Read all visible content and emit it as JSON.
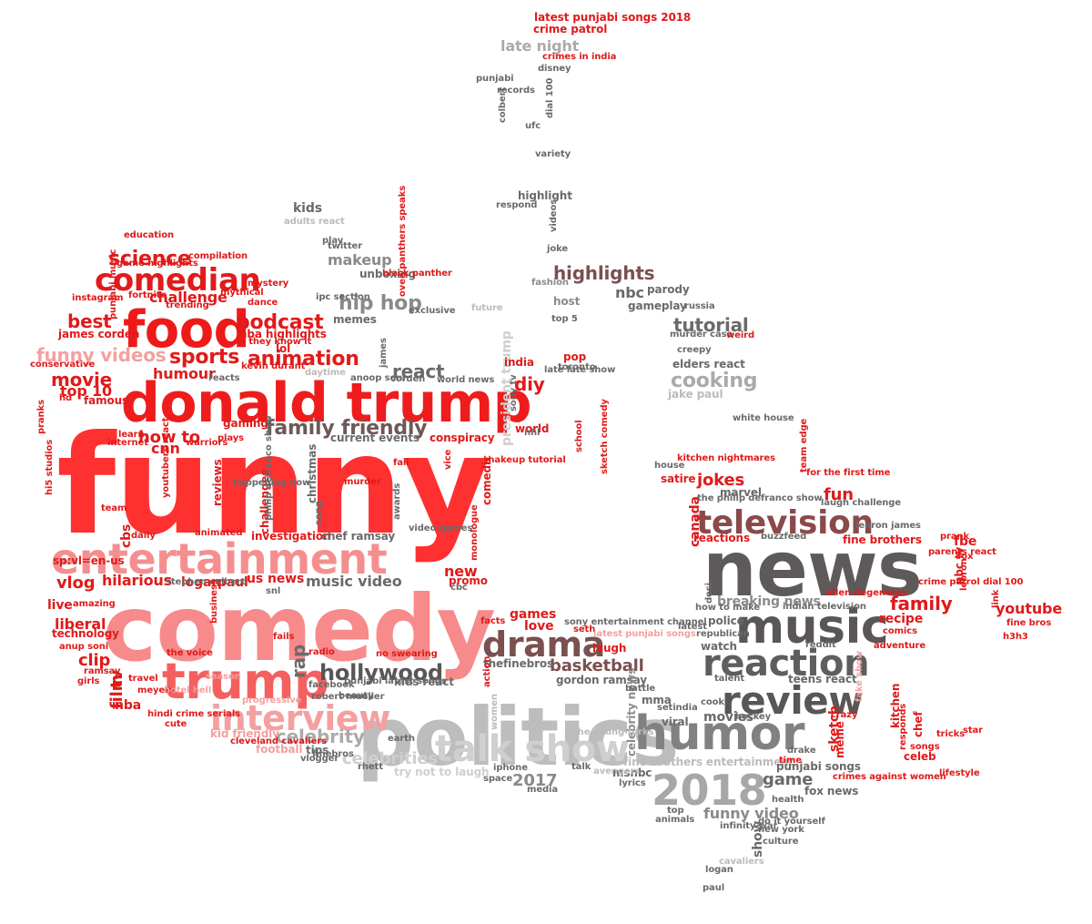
{
  "palette": {
    "red": "#e11a1a",
    "red_bright": "#ff3030",
    "pink": "#f79090",
    "pink_light": "#f4a8a8",
    "salmon": "#f06a6a",
    "dark_gray": "#555555",
    "mid_gray": "#888888",
    "light_gray": "#bbbbbb",
    "brown": "#7a4b4b",
    "mauve": "#8a5a5a"
  },
  "words": [
    {
      "text": "funny",
      "c": "#ff3030"
    },
    {
      "text": "comedy",
      "c": "#f78a8a"
    },
    {
      "text": "politics",
      "c": "#bdbdbd"
    },
    {
      "text": "news",
      "c": "#5e5a5a"
    },
    {
      "text": "donald trump",
      "c": "#ee1c1c"
    },
    {
      "text": "entertainment",
      "c": "#f58f8f"
    },
    {
      "text": "music",
      "c": "#5a5656"
    },
    {
      "text": "humor",
      "c": "#828080"
    },
    {
      "text": "food",
      "c": "#ee1a1a"
    },
    {
      "text": "trump",
      "c": "#f46060"
    },
    {
      "text": "2018",
      "c": "#a7a7a7"
    },
    {
      "text": "reaction",
      "c": "#5e5e5e"
    },
    {
      "text": "review",
      "c": "#5a5656"
    },
    {
      "text": "talk show",
      "c": "#cfcfcf"
    },
    {
      "text": "comedian",
      "c": "#e11a1a"
    },
    {
      "text": "television",
      "c": "#8a4a4a"
    },
    {
      "text": "interview",
      "c": "#f4a0a0"
    },
    {
      "text": "drama",
      "c": "#7a5050"
    },
    {
      "text": "highlights",
      "c": "#7a5050"
    },
    {
      "text": "family friendly",
      "c": "#6e5858"
    },
    {
      "text": "funny videos",
      "c": "#f4a0a0"
    },
    {
      "text": "hollywood",
      "c": "#5a5656"
    },
    {
      "text": "sports",
      "c": "#e11a1a"
    },
    {
      "text": "science",
      "c": "#e11a1a"
    },
    {
      "text": "podcast",
      "c": "#e11a1a"
    },
    {
      "text": "animation",
      "c": "#e11a1a"
    },
    {
      "text": "best",
      "c": "#e11a1a"
    },
    {
      "text": "movie",
      "c": "#e11a1a"
    },
    {
      "text": "hip hop",
      "c": "#8a8a8a"
    },
    {
      "text": "makeup",
      "c": "#8a8a8a"
    },
    {
      "text": "cooking",
      "c": "#aaaaaa"
    },
    {
      "text": "tutorial",
      "c": "#6a6a6a"
    },
    {
      "text": "react",
      "c": "#6a6a6a"
    },
    {
      "text": "celebrity",
      "c": "#aaaaaa"
    },
    {
      "text": "celebrities",
      "c": "#cfcfcf"
    },
    {
      "text": "music video",
      "c": "#6a6a6a"
    },
    {
      "text": "family",
      "c": "#e11a1a"
    },
    {
      "text": "youtube",
      "c": "#e11a1a"
    },
    {
      "text": "fun",
      "c": "#e11a1a"
    },
    {
      "text": "jokes",
      "c": "#e11a1a"
    },
    {
      "text": "game",
      "c": "#6a6a6a"
    },
    {
      "text": "basketball",
      "c": "#7a5050"
    },
    {
      "text": "funny video",
      "c": "#8a8a8a"
    },
    {
      "text": "movies",
      "c": "#6a6a6a"
    },
    {
      "text": "2017",
      "c": "#8a8a8a"
    },
    {
      "text": "breaking news",
      "c": "#8a8a8a"
    },
    {
      "text": "late night",
      "c": "#aaaaaa"
    },
    {
      "text": "diy",
      "c": "#e11a1a"
    },
    {
      "text": "rap",
      "c": "#6a6a6a"
    },
    {
      "text": "vlog",
      "c": "#e11a1a"
    },
    {
      "text": "clip",
      "c": "#e11a1a"
    },
    {
      "text": "live",
      "c": "#e11a1a"
    },
    {
      "text": "liberal",
      "c": "#e11a1a"
    },
    {
      "text": "film",
      "c": "#e11a1a"
    },
    {
      "text": "tv",
      "c": "#e11a1a"
    },
    {
      "text": "nba",
      "c": "#e11a1a"
    },
    {
      "text": "top 10",
      "c": "#e11a1a"
    },
    {
      "text": "how to",
      "c": "#e11a1a"
    },
    {
      "text": "cnn",
      "c": "#e11a1a"
    },
    {
      "text": "humour",
      "c": "#e11a1a"
    },
    {
      "text": "challenge",
      "c": "#e11a1a"
    },
    {
      "text": "hilarious",
      "c": "#e11a1a"
    },
    {
      "text": "logan",
      "c": "#e11a1a"
    },
    {
      "text": "paul",
      "c": "#e11a1a"
    },
    {
      "text": "us",
      "c": "#e11a1a"
    },
    {
      "text": "news",
      "c": "#e11a1a"
    },
    {
      "text": "games",
      "c": "#e11a1a"
    },
    {
      "text": "love",
      "c": "#e11a1a"
    },
    {
      "text": "laugh",
      "c": "#e11a1a"
    },
    {
      "text": "new",
      "c": "#e11a1a"
    },
    {
      "text": "recipe",
      "c": "#e11a1a"
    },
    {
      "text": "fbe",
      "c": "#e11a1a"
    },
    {
      "text": "kids",
      "c": "#6a6a6a"
    },
    {
      "text": "nbc",
      "c": "#6a6a6a"
    },
    {
      "text": "host",
      "c": "#8a8a8a"
    },
    {
      "text": "investigation",
      "c": "#e11a1a"
    },
    {
      "text": "chef ramsay",
      "c": "#6a6a6a"
    },
    {
      "text": "gordon ramsay",
      "c": "#6a6a6a"
    },
    {
      "text": "kids react",
      "c": "#6a6a6a"
    },
    {
      "text": "thefinebros",
      "c": "#6a6a6a"
    },
    {
      "text": "kid friendly",
      "c": "#f4a0a0"
    },
    {
      "text": "football",
      "c": "#f4a0a0"
    },
    {
      "text": "christmas",
      "c": "#6a6a6a"
    },
    {
      "text": "president trump",
      "c": "#cfcfcf"
    },
    {
      "text": "celebrity news",
      "c": "#8a8a8a"
    },
    {
      "text": "fine brothers",
      "c": "#e11a1a"
    },
    {
      "text": "fine brothers entertainment",
      "c": "#bbbbbb"
    },
    {
      "text": "try not to laugh",
      "c": "#cfcfcf"
    },
    {
      "text": "show",
      "c": "#6a6a6a"
    },
    {
      "text": "sketch",
      "c": "#e11a1a"
    },
    {
      "text": "canada",
      "c": "#e11a1a"
    },
    {
      "text": "unboxing",
      "c": "#6a6a6a"
    },
    {
      "text": "gameplay",
      "c": "#6a6a6a"
    },
    {
      "text": "parody",
      "c": "#6a6a6a"
    },
    {
      "text": "conspiracy",
      "c": "#e11a1a"
    },
    {
      "text": "current events",
      "c": "#6a6a6a"
    },
    {
      "text": "gaming",
      "c": "#e11a1a"
    },
    {
      "text": "reactions",
      "c": "#e11a1a"
    },
    {
      "text": "punjabi songs",
      "c": "#6a6a6a"
    },
    {
      "text": "fox news",
      "c": "#6a6a6a"
    },
    {
      "text": "msnbc",
      "c": "#6a6a6a"
    },
    {
      "text": "viral",
      "c": "#6a6a6a"
    },
    {
      "text": "watch",
      "c": "#6a6a6a"
    },
    {
      "text": "police",
      "c": "#6a6a6a"
    },
    {
      "text": "teens react",
      "c": "#6a6a6a"
    },
    {
      "text": "mma",
      "c": "#6a6a6a"
    },
    {
      "text": "elders react",
      "c": "#6a6a6a"
    },
    {
      "text": "jake paul",
      "c": "#bbbbbb"
    },
    {
      "text": "marvel",
      "c": "#6a6a6a"
    },
    {
      "text": "satire",
      "c": "#e11a1a"
    },
    {
      "text": "chef",
      "c": "#e11a1a"
    },
    {
      "text": "celeb",
      "c": "#e11a1a"
    },
    {
      "text": "kitchen",
      "c": "#e11a1a"
    },
    {
      "text": "tricks",
      "c": "#e11a1a"
    },
    {
      "text": "meme",
      "c": "#e11a1a"
    },
    {
      "text": "crazy",
      "c": "#e11a1a"
    },
    {
      "text": "nbc tv",
      "c": "#e11a1a"
    },
    {
      "text": "fine bros",
      "c": "#e11a1a"
    },
    {
      "text": "h3h3",
      "c": "#e11a1a"
    },
    {
      "text": "james corden",
      "c": "#e11a1a"
    },
    {
      "text": "famous",
      "c": "#e11a1a"
    },
    {
      "text": "travel",
      "c": "#e11a1a"
    },
    {
      "text": "cbs",
      "c": "#e11a1a"
    },
    {
      "text": "daily",
      "c": "#e11a1a"
    },
    {
      "text": "reviews",
      "c": "#e11a1a"
    },
    {
      "text": "challenges",
      "c": "#e11a1a"
    },
    {
      "text": "comedic",
      "c": "#e11a1a"
    },
    {
      "text": "promo",
      "c": "#e11a1a"
    },
    {
      "text": "pop",
      "c": "#e11a1a"
    },
    {
      "text": "india",
      "c": "#e11a1a"
    },
    {
      "text": "world",
      "c": "#e11a1a"
    },
    {
      "text": "school",
      "c": "#e11a1a"
    },
    {
      "text": "internet",
      "c": "#e11a1a"
    },
    {
      "text": "learn",
      "c": "#e11a1a"
    },
    {
      "text": "technology",
      "c": "#e11a1a"
    },
    {
      "text": "amazing",
      "c": "#e11a1a"
    },
    {
      "text": "sp:vl=en-us",
      "c": "#e11a1a"
    },
    {
      "text": "compilation",
      "c": "#e11a1a"
    },
    {
      "text": "education",
      "c": "#e11a1a"
    },
    {
      "text": "game highlights",
      "c": "#e11a1a"
    },
    {
      "text": "nba highlights",
      "c": "#e11a1a"
    },
    {
      "text": "lol",
      "c": "#e11a1a"
    },
    {
      "text": "instagram",
      "c": "#e11a1a"
    },
    {
      "text": "punjabi music",
      "c": "#e11a1a"
    },
    {
      "text": "dance",
      "c": "#e11a1a"
    },
    {
      "text": "mystery",
      "c": "#e11a1a"
    },
    {
      "text": "mythical",
      "c": "#e11a1a"
    },
    {
      "text": "trending",
      "c": "#e11a1a"
    },
    {
      "text": "fortnite",
      "c": "#e11a1a"
    },
    {
      "text": "conservative",
      "c": "#e11a1a"
    },
    {
      "text": "ramsay",
      "c": "#e11a1a"
    },
    {
      "text": "girls",
      "c": "#e11a1a"
    },
    {
      "text": "anup soni",
      "c": "#e11a1a"
    },
    {
      "text": "meyers",
      "c": "#e11a1a"
    },
    {
      "text": "hotel hell",
      "c": "#f4a0a0"
    },
    {
      "text": "hindi crime serials",
      "c": "#e11a1a"
    },
    {
      "text": "cute",
      "c": "#e11a1a"
    },
    {
      "text": "cleveland cavaliers",
      "c": "#e11a1a"
    },
    {
      "text": "progressive",
      "c": "#f4a0a0"
    },
    {
      "text": "season",
      "c": "#f4a0a0"
    },
    {
      "text": "fails",
      "c": "#e11a1a"
    },
    {
      "text": "the voice",
      "c": "#e11a1a"
    },
    {
      "text": "stephen colbert",
      "c": "#6a6a6a"
    },
    {
      "text": "snl",
      "c": "#6a6a6a"
    },
    {
      "text": "cbc",
      "c": "#6a6a6a"
    },
    {
      "text": "team",
      "c": "#e11a1a"
    },
    {
      "text": "animated",
      "c": "#e11a1a"
    },
    {
      "text": "warriors",
      "c": "#e11a1a"
    },
    {
      "text": "plays",
      "c": "#e11a1a"
    },
    {
      "text": "hi5 studios",
      "c": "#e11a1a"
    },
    {
      "text": "youtubers react",
      "c": "#e11a1a"
    },
    {
      "text": "latest punjabi songs 2018",
      "c": "#e11a1a"
    },
    {
      "text": "crime patrol",
      "c": "#e11a1a"
    },
    {
      "text": "crimes in india",
      "c": "#e11a1a"
    },
    {
      "text": "disney",
      "c": "#6a6a6a"
    },
    {
      "text": "punjabi",
      "c": "#6a6a6a"
    },
    {
      "text": "records",
      "c": "#6a6a6a"
    },
    {
      "text": "colbert",
      "c": "#6a6a6a"
    },
    {
      "text": "dial 100",
      "c": "#6a6a6a"
    },
    {
      "text": "ufc",
      "c": "#6a6a6a"
    },
    {
      "text": "variety",
      "c": "#6a6a6a"
    },
    {
      "text": "highlight",
      "c": "#6a6a6a"
    },
    {
      "text": "respond",
      "c": "#6a6a6a"
    },
    {
      "text": "videos",
      "c": "#6a6a6a"
    },
    {
      "text": "joke",
      "c": "#6a6a6a"
    },
    {
      "text": "adults react",
      "c": "#bbbbbb"
    },
    {
      "text": "play",
      "c": "#6a6a6a"
    },
    {
      "text": "twitter",
      "c": "#6a6a6a"
    },
    {
      "text": "ipc section",
      "c": "#6a6a6a"
    },
    {
      "text": "memes",
      "c": "#6a6a6a"
    },
    {
      "text": "exclusive",
      "c": "#6a6a6a"
    },
    {
      "text": "future",
      "c": "#bbbbbb"
    },
    {
      "text": "fashion",
      "c": "#8a8a8a"
    },
    {
      "text": "top 5",
      "c": "#6a6a6a"
    },
    {
      "text": "russia",
      "c": "#6a6a6a"
    },
    {
      "text": "murder case",
      "c": "#6a6a6a"
    },
    {
      "text": "weird",
      "c": "#e11a1a"
    },
    {
      "text": "creepy",
      "c": "#6a6a6a"
    },
    {
      "text": "white house",
      "c": "#6a6a6a"
    },
    {
      "text": "daytime",
      "c": "#bbbbbb"
    },
    {
      "text": "anoop soni",
      "c": "#6a6a6a"
    },
    {
      "text": "corden",
      "c": "#6a6a6a"
    },
    {
      "text": "world news",
      "c": "#6a6a6a"
    },
    {
      "text": "james",
      "c": "#6a6a6a"
    },
    {
      "text": "toronto",
      "c": "#6a6a6a"
    },
    {
      "text": "late late show",
      "c": "#6a6a6a"
    },
    {
      "text": "sony tv",
      "c": "#6a6a6a"
    },
    {
      "text": "nhl",
      "c": "#6a6a6a"
    },
    {
      "text": "sketch comedy",
      "c": "#e11a1a"
    },
    {
      "text": "makeup tutorial",
      "c": "#e11a1a"
    },
    {
      "text": "vice",
      "c": "#e11a1a"
    },
    {
      "text": "fail",
      "c": "#e11a1a"
    },
    {
      "text": "murder",
      "c": "#e11a1a"
    },
    {
      "text": "awards",
      "c": "#6a6a6a"
    },
    {
      "text": "video games",
      "c": "#6a6a6a"
    },
    {
      "text": "song",
      "c": "#6a6a6a"
    },
    {
      "text": "philip defranco show",
      "c": "#6a6a6a"
    },
    {
      "text": "monologue",
      "c": "#e11a1a"
    },
    {
      "text": "sony entertainment channel",
      "c": "#6a6a6a"
    },
    {
      "text": "seth",
      "c": "#e11a1a"
    },
    {
      "text": "latest punjabi songs",
      "c": "#f4a0a0"
    },
    {
      "text": "facts",
      "c": "#e11a1a"
    },
    {
      "text": "no swearing",
      "c": "#e11a1a"
    },
    {
      "text": "radio",
      "c": "#e11a1a"
    },
    {
      "text": "action",
      "c": "#e11a1a"
    },
    {
      "text": "facebook",
      "c": "#6a6a6a"
    },
    {
      "text": "punjabi latest songs",
      "c": "#6a6a6a"
    },
    {
      "text": "robert mueller",
      "c": "#6a6a6a"
    },
    {
      "text": "beauty",
      "c": "#6a6a6a"
    },
    {
      "text": "women",
      "c": "#bbbbbb"
    },
    {
      "text": "iphone",
      "c": "#6a6a6a"
    },
    {
      "text": "space",
      "c": "#6a6a6a"
    },
    {
      "text": "media",
      "c": "#6a6a6a"
    },
    {
      "text": "earth",
      "c": "#6a6a6a"
    },
    {
      "text": "tips",
      "c": "#6a6a6a"
    },
    {
      "text": "vlogger",
      "c": "#6a6a6a"
    },
    {
      "text": "finebros",
      "c": "#6a6a6a"
    },
    {
      "text": "rhett",
      "c": "#6a6a6a"
    },
    {
      "text": "talk",
      "c": "#6a6a6a"
    },
    {
      "text": "avengers",
      "c": "#bbbbbb"
    },
    {
      "text": "the young turks",
      "c": "#bbbbbb"
    },
    {
      "text": "battle",
      "c": "#6a6a6a"
    },
    {
      "text": "lyrics",
      "c": "#6a6a6a"
    },
    {
      "text": "setindia",
      "c": "#6a6a6a"
    },
    {
      "text": "cook",
      "c": "#6a6a6a"
    },
    {
      "text": "hockey",
      "c": "#6a6a6a"
    },
    {
      "text": "drake",
      "c": "#6a6a6a"
    },
    {
      "text": "health",
      "c": "#6a6a6a"
    },
    {
      "text": "do it yourself",
      "c": "#6a6a6a"
    },
    {
      "text": "new york",
      "c": "#6a6a6a"
    },
    {
      "text": "culture",
      "c": "#6a6a6a"
    },
    {
      "text": "animals",
      "c": "#6a6a6a"
    },
    {
      "text": "infinity war",
      "c": "#6a6a6a"
    },
    {
      "text": "top",
      "c": "#6a6a6a"
    },
    {
      "text": "cavaliers",
      "c": "#bbbbbb"
    },
    {
      "text": "logan",
      "c": "#6a6a6a"
    },
    {
      "text": "paul",
      "c": "#6a6a6a"
    },
    {
      "text": "latest",
      "c": "#6a6a6a"
    },
    {
      "text": "republican",
      "c": "#6a6a6a"
    },
    {
      "text": "reddit",
      "c": "#6a6a6a"
    },
    {
      "text": "talent",
      "c": "#6a6a6a"
    },
    {
      "text": "how to make",
      "c": "#6a6a6a"
    },
    {
      "text": "indian television",
      "c": "#6a6a6a"
    },
    {
      "text": "buzzfeed",
      "c": "#6a6a6a"
    },
    {
      "text": "the philip defranco show",
      "c": "#6a6a6a"
    },
    {
      "text": "laugh challenge",
      "c": "#6a6a6a"
    },
    {
      "text": "lebron james",
      "c": "#6a6a6a"
    },
    {
      "text": "ellen degeneres",
      "c": "#e11a1a"
    },
    {
      "text": "team edge",
      "c": "#e11a1a"
    },
    {
      "text": "for the first time",
      "c": "#e11a1a"
    },
    {
      "text": "kitchen nightmares",
      "c": "#e11a1a"
    },
    {
      "text": "house",
      "c": "#6a6a6a"
    },
    {
      "text": "desi",
      "c": "#6a6a6a"
    },
    {
      "text": "prank",
      "c": "#e11a1a"
    },
    {
      "text": "parents react",
      "c": "#e11a1a"
    },
    {
      "text": "crime patrol dial 100",
      "c": "#e11a1a"
    },
    {
      "text": "fox",
      "c": "#e11a1a"
    },
    {
      "text": "lebron",
      "c": "#e11a1a"
    },
    {
      "text": "link",
      "c": "#e11a1a"
    },
    {
      "text": "comics",
      "c": "#e11a1a"
    },
    {
      "text": "adventure",
      "c": "#e11a1a"
    },
    {
      "text": "fake show",
      "c": "#f4a0a0"
    },
    {
      "text": "responds",
      "c": "#e11a1a"
    },
    {
      "text": "songs",
      "c": "#e11a1a"
    },
    {
      "text": "star",
      "c": "#e11a1a"
    },
    {
      "text": "crimes against women",
      "c": "#e11a1a"
    },
    {
      "text": "lifestyle",
      "c": "#e11a1a"
    },
    {
      "text": "time",
      "c": "#e11a1a"
    },
    {
      "text": "business",
      "c": "#e11a1a"
    },
    {
      "text": "pranks",
      "c": "#e11a1a"
    },
    {
      "text": "reacts",
      "c": "#6a6a6a"
    },
    {
      "text": "happening now",
      "c": "#6a6a6a"
    },
    {
      "text": "kevin durant",
      "c": "#e11a1a"
    },
    {
      "text": "do they know it",
      "c": "#e11a1a"
    },
    {
      "text": "black panther",
      "c": "#e11a1a"
    },
    {
      "text": "oven panthers speaks",
      "c": "#e11a1a"
    },
    {
      "text": "hd",
      "c": "#e11a1a"
    },
    {
      "text": "test",
      "c": "#6a6a6a"
    },
    {
      "text": "scary",
      "c": "#6a6a6a"
    },
    {
      "text": "us",
      "c": "#e11a1a"
    }
  ]
}
